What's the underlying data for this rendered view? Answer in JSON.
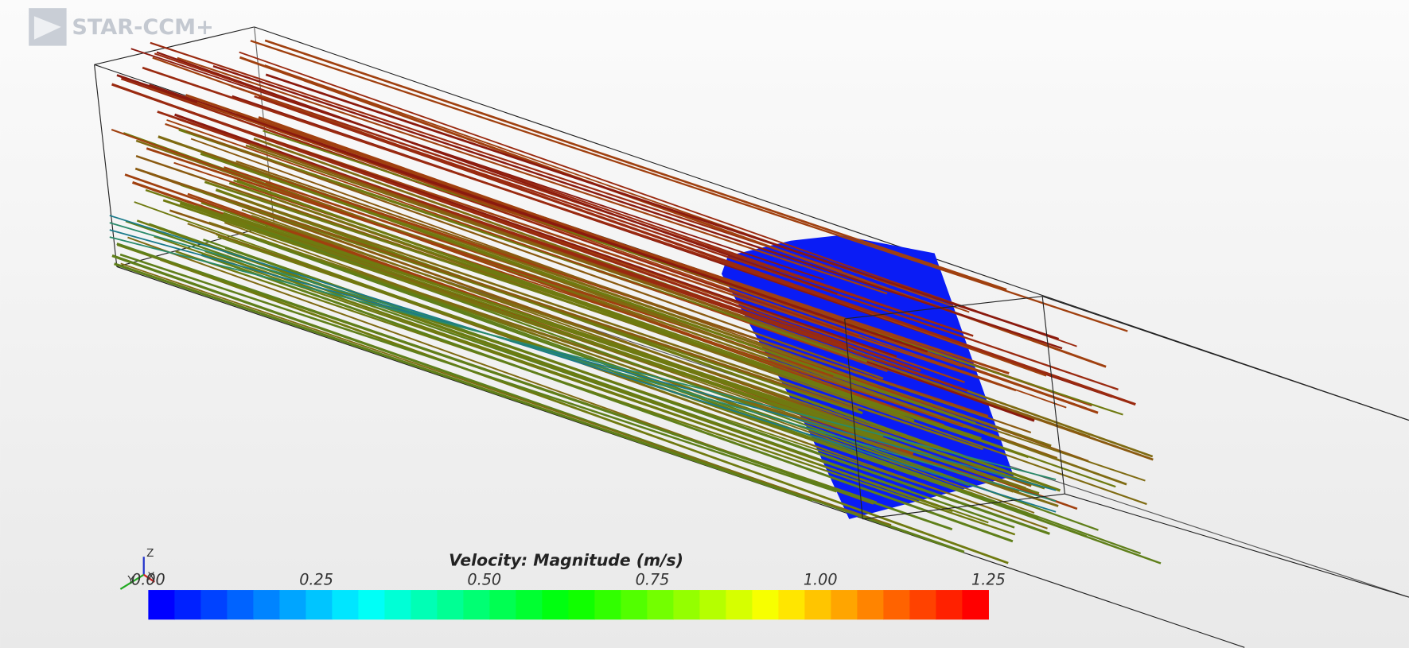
{
  "logo": {
    "text": "STAR-CCM+"
  },
  "triad": {
    "labels": [
      "Z",
      "Y",
      "X"
    ]
  },
  "colorbar": {
    "title": "Velocity: Magnitude (m/s)",
    "range": [
      0,
      1.25
    ],
    "ticks": [
      {
        "value": 0,
        "label": "0.00"
      },
      0.25,
      {
        "value": 0.5,
        "label": "0.50"
      },
      0.75,
      {
        "value": 1,
        "label": "1.00"
      },
      1.25
    ]
  }
}
